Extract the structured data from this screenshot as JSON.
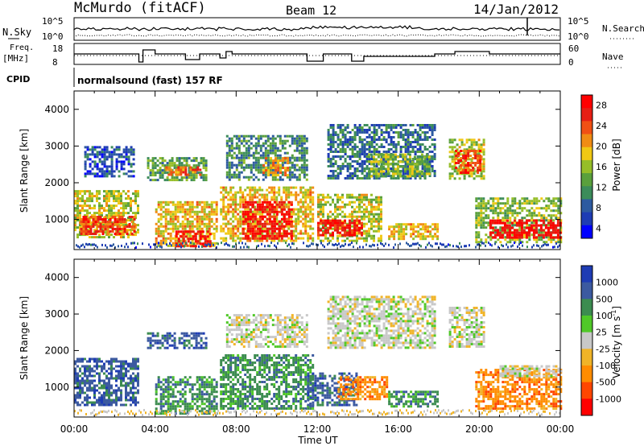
{
  "header": {
    "station": "McMurdo (fitACF)",
    "beam": "Beam 12",
    "date": "14/Jan/2012"
  },
  "top_panels": {
    "nsky_label": "N.Sky",
    "nsearch_label": "N.Search",
    "nsky_ticks": [
      "10^5",
      "10^0"
    ],
    "nsearch_ticks": [
      "10^5",
      "10^0"
    ],
    "freq_label_1": "Freq.",
    "freq_label_2": "[MHz]",
    "freq_ticks": [
      "18",
      "8"
    ],
    "nave_label": "Nave",
    "nave_ticks": [
      "60",
      "0"
    ],
    "cpid_label": "CPID",
    "cpid_value": "normalsound (fast) 157 RF"
  },
  "colors": {
    "power": [
      "#0000ff",
      "#1e3cb4",
      "#2d5aa0",
      "#3c8c5a",
      "#5aa03c",
      "#96be28",
      "#f0c814",
      "#f08c14",
      "#f05014",
      "#e61e14",
      "#ff0000"
    ],
    "velocity": [
      "#ff0000",
      "#ff4600",
      "#ff8c00",
      "#f0b428",
      "#c8c8c8",
      "#50c828",
      "#3c8c50",
      "#3c5aa0",
      "#1e3cb4"
    ]
  },
  "chart_data": [
    {
      "type": "heatmap",
      "name": "power",
      "ylabel": "Slant Range [km]",
      "ylim": [
        180,
        4500
      ],
      "yticks": [
        "1000",
        "2000",
        "3000",
        "4000"
      ],
      "xticks": [
        "00:00",
        "04:00",
        "08:00",
        "12:00",
        "16:00",
        "20:00",
        "00:00"
      ],
      "colorbar_label": "Power [dB]",
      "colorbar_ticks": [
        "4",
        "8",
        "12",
        "16",
        "20",
        "24",
        "28"
      ],
      "regions": [
        {
          "t0": 0.0,
          "t1": 3.2,
          "r0": 500,
          "r1": 1800,
          "v": 16
        },
        {
          "t0": 0.3,
          "t1": 3.0,
          "r0": 600,
          "r1": 1100,
          "v": 24
        },
        {
          "t0": 0.5,
          "t1": 3.0,
          "r0": 2200,
          "r1": 3000,
          "v": 6
        },
        {
          "t0": 3.6,
          "t1": 6.5,
          "r0": 2100,
          "r1": 2700,
          "v": 12
        },
        {
          "t0": 4.5,
          "t1": 6.2,
          "r0": 2250,
          "r1": 2450,
          "v": 22
        },
        {
          "t0": 4.0,
          "t1": 7.0,
          "r0": 300,
          "r1": 1500,
          "v": 18
        },
        {
          "t0": 5.0,
          "t1": 6.7,
          "r0": 300,
          "r1": 700,
          "v": 28
        },
        {
          "t0": 7.2,
          "t1": 11.8,
          "r0": 400,
          "r1": 1900,
          "v": 18
        },
        {
          "t0": 8.3,
          "t1": 10.8,
          "r0": 500,
          "r1": 1500,
          "v": 27
        },
        {
          "t0": 7.5,
          "t1": 11.5,
          "r0": 2100,
          "r1": 3300,
          "v": 10
        },
        {
          "t0": 9.3,
          "t1": 10.5,
          "r0": 2200,
          "r1": 2700,
          "v": 20
        },
        {
          "t0": 12.0,
          "t1": 15.2,
          "r0": 400,
          "r1": 1700,
          "v": 16
        },
        {
          "t0": 12.0,
          "t1": 14.2,
          "r0": 600,
          "r1": 1000,
          "v": 26
        },
        {
          "t0": 12.5,
          "t1": 17.8,
          "r0": 2100,
          "r1": 3600,
          "v": 8
        },
        {
          "t0": 14.5,
          "t1": 17.5,
          "r0": 2200,
          "r1": 2800,
          "v": 14
        },
        {
          "t0": 15.5,
          "t1": 18.0,
          "r0": 500,
          "r1": 900,
          "v": 18
        },
        {
          "t0": 18.5,
          "t1": 20.2,
          "r0": 2100,
          "r1": 3200,
          "v": 16
        },
        {
          "t0": 18.8,
          "t1": 20.0,
          "r0": 2300,
          "r1": 2900,
          "v": 24
        },
        {
          "t0": 19.8,
          "t1": 24.0,
          "r0": 400,
          "r1": 1600,
          "v": 14
        },
        {
          "t0": 20.5,
          "t1": 24.0,
          "r0": 500,
          "r1": 1000,
          "v": 28
        }
      ]
    },
    {
      "type": "heatmap",
      "name": "velocity",
      "ylabel": "Slant Range [km]",
      "ylim": [
        180,
        4500
      ],
      "yticks": [
        "1000",
        "2000",
        "3000",
        "4000"
      ],
      "xticks": [
        "00:00",
        "04:00",
        "08:00",
        "12:00",
        "16:00",
        "20:00",
        "00:00"
      ],
      "xlabel": "Time UT",
      "colorbar_label": "Velocity [m s",
      "colorbar_label_sup": "-1",
      "colorbar_label_end": "]",
      "colorbar_ticks": [
        "1000",
        "500",
        "100",
        "25",
        "-25",
        "-100",
        "-500",
        "-1000"
      ],
      "regions": [
        {
          "t0": 0.0,
          "t1": 3.2,
          "r0": 500,
          "r1": 1800,
          "v": 3
        },
        {
          "t0": 3.6,
          "t1": 6.5,
          "r0": 2100,
          "r1": 2500,
          "v": 3
        },
        {
          "t0": 4.0,
          "t1": 7.0,
          "r0": 300,
          "r1": 1300,
          "v": 2
        },
        {
          "t0": 7.2,
          "t1": 11.8,
          "r0": 400,
          "r1": 1900,
          "v": 2
        },
        {
          "t0": 7.5,
          "t1": 11.5,
          "r0": 2100,
          "r1": 3000,
          "v": 0
        },
        {
          "t0": 11.5,
          "t1": 14.0,
          "r0": 500,
          "r1": 1400,
          "v": 3
        },
        {
          "t0": 13.0,
          "t1": 15.5,
          "r0": 700,
          "r1": 1300,
          "v": -2
        },
        {
          "t0": 12.5,
          "t1": 17.8,
          "r0": 2100,
          "r1": 3500,
          "v": 0
        },
        {
          "t0": 15.5,
          "t1": 18.0,
          "r0": 500,
          "r1": 900,
          "v": 2
        },
        {
          "t0": 18.5,
          "t1": 20.2,
          "r0": 2100,
          "r1": 3200,
          "v": 0
        },
        {
          "t0": 19.8,
          "t1": 24.0,
          "r0": 400,
          "r1": 1500,
          "v": -2
        },
        {
          "t0": 21.0,
          "t1": 24.0,
          "r0": 1300,
          "r1": 1600,
          "v": 0
        }
      ]
    }
  ]
}
